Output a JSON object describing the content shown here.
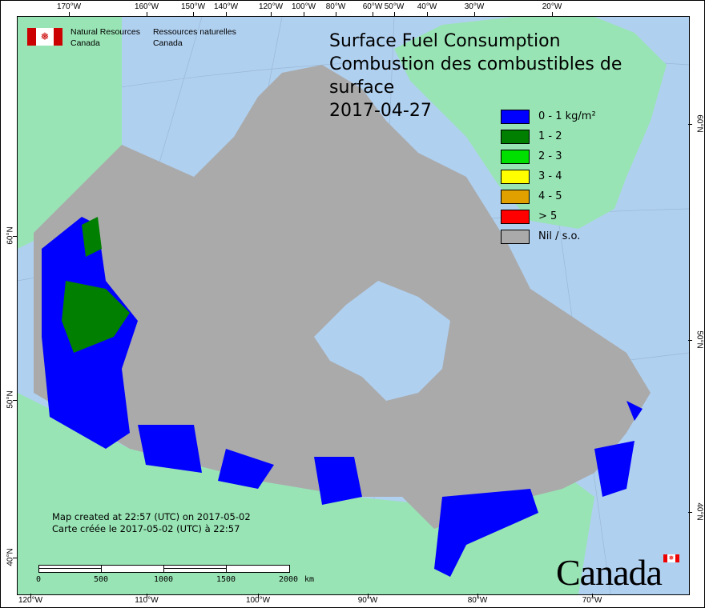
{
  "header": {
    "org_en_line1": "Natural Resources",
    "org_en_line2": "Canada",
    "org_fr_line1": "Ressources naturelles",
    "org_fr_line2": "Canada"
  },
  "title": {
    "en": "Surface Fuel Consumption",
    "fr": "Combustion des combustibles de surface",
    "date": "2017-04-27"
  },
  "legend": [
    {
      "label": "0 - 1 kg/m²",
      "color": "#0000ff"
    },
    {
      "label": "1 - 2",
      "color": "#007f00"
    },
    {
      "label": "2 - 3",
      "color": "#00e000"
    },
    {
      "label": "3 - 4",
      "color": "#ffff00"
    },
    {
      "label": "4 - 5",
      "color": "#e0a000"
    },
    {
      "label": "> 5",
      "color": "#ff0000"
    },
    {
      "label": "Nil / s.o.",
      "color": "#aaaaaa"
    }
  ],
  "credit": {
    "en": "Map created at 22:57 (UTC) on 2017-05-02",
    "fr": "Carte créée le 2017-05-02 (UTC) à 22:57"
  },
  "scale_bar": {
    "labels": [
      "0",
      "500",
      "1000",
      "1500",
      "2000"
    ],
    "unit": "km"
  },
  "wordmark": "Canada",
  "graticule": {
    "top": [
      "170°W",
      "160°W",
      "150°W",
      "140°W",
      "120°W",
      "100°W",
      "80°W",
      "60°W",
      "50°W",
      "40°W",
      "30°W",
      "20°W"
    ],
    "bottom": [
      "120°W",
      "110°W",
      "100°W",
      "90°W",
      "80°W",
      "70°W"
    ],
    "left": [
      "60°N",
      "50°N",
      "40°N"
    ],
    "right": [
      "60°N",
      "50°N",
      "40°N"
    ]
  },
  "colors": {
    "water": "#b0d0f0",
    "land_other": "#98e4b4",
    "land_canada_nil": "#aaaaaa",
    "fire_low": "#0000ff"
  }
}
